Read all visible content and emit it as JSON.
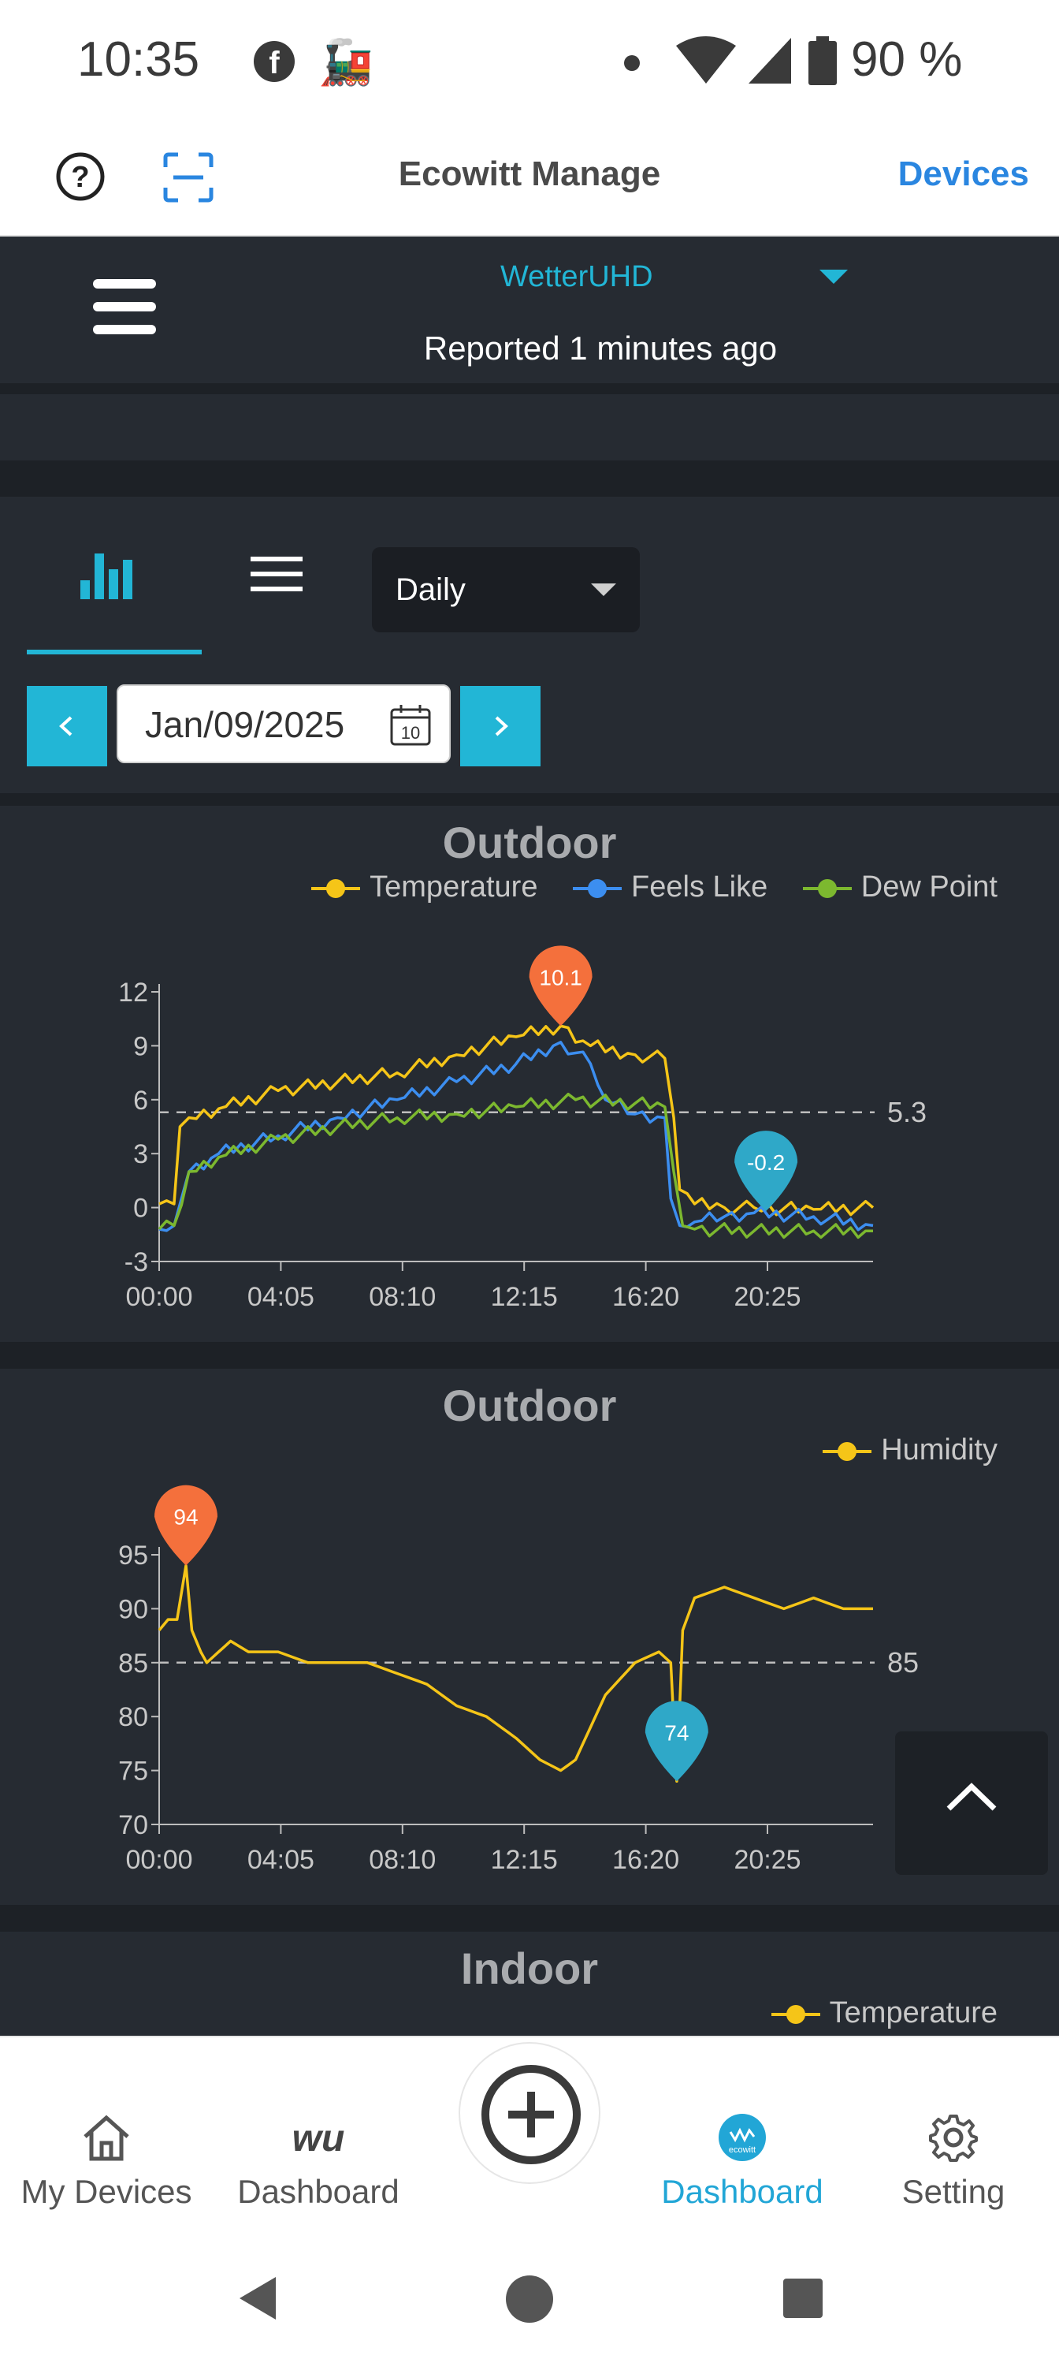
{
  "status_bar": {
    "time": "10:35",
    "battery": "90 %"
  },
  "app_header": {
    "title": "Ecowitt Manage",
    "devices_link": "Devices"
  },
  "station": {
    "name": "WetterUHD",
    "reported": "Reported 1 minutes ago"
  },
  "controls": {
    "period": "Daily",
    "date": "Jan/09/2025",
    "calendar_day": "10"
  },
  "chart1": {
    "title": "Outdoor",
    "legend": [
      "Temperature",
      "Feels Like",
      "Dew Point"
    ],
    "avg_label": "5.3",
    "max_label": "10.1",
    "min_label": "-0.2"
  },
  "chart2": {
    "title": "Outdoor",
    "legend": [
      "Humidity"
    ],
    "avg_label": "85",
    "max_label": "94",
    "min_label": "74"
  },
  "chart3": {
    "title": "Indoor",
    "legend": [
      "Temperature"
    ]
  },
  "bottom_nav": {
    "my_devices": "My Devices",
    "dashboard_wu": "Dashboard",
    "dashboard_ecowitt": "Dashboard",
    "setting": "Setting",
    "wu_logo": "wu",
    "ecowitt_logo": "ecowitt"
  },
  "colors": {
    "accent": "#22b6d6",
    "temperature": "#f5c518",
    "feels_like": "#3c8ef0",
    "dew_point": "#7cb82f",
    "max_pin": "#f4703c",
    "min_pin": "#2fa8c8"
  },
  "chart_data": [
    {
      "type": "line",
      "title": "Outdoor",
      "x_ticks": [
        "00:00",
        "04:05",
        "08:10",
        "12:15",
        "16:20",
        "20:25"
      ],
      "y_ticks": [
        12,
        9,
        6,
        3,
        0,
        -3
      ],
      "ylim": [
        -3,
        12
      ],
      "xlim_hours": [
        0,
        24
      ],
      "grid": false,
      "legend_position": "top-right",
      "average": 5.3,
      "max": 10.1,
      "min": -0.2,
      "series": [
        {
          "name": "Temperature",
          "color": "#f5c518",
          "x": [
            0,
            0.5,
            0.7,
            1,
            2,
            4,
            6,
            8,
            10,
            12,
            13.5,
            14.5,
            16,
            17,
            17.3,
            17.5,
            18,
            19,
            20,
            22,
            24
          ],
          "y": [
            0.2,
            0.2,
            4.5,
            5.0,
            5.5,
            6.5,
            7.0,
            7.5,
            8.5,
            9.5,
            10.1,
            9.0,
            8.5,
            8.3,
            5.0,
            1.0,
            0.2,
            0.0,
            0.0,
            -0.1,
            0.0
          ]
        },
        {
          "name": "Feels Like",
          "color": "#3c8ef0",
          "x": [
            0,
            0.5,
            1,
            2,
            4,
            6,
            8,
            10,
            12,
            13.5,
            14.5,
            15,
            16,
            17,
            17.2,
            17.5,
            18,
            19,
            20,
            22,
            24
          ],
          "y": [
            -1.2,
            -1.0,
            2.0,
            3.0,
            4.0,
            5.0,
            6.0,
            7.0,
            8.0,
            9.2,
            8.0,
            6.0,
            5.2,
            5.0,
            0.5,
            -1.0,
            -0.8,
            -0.5,
            -0.3,
            -0.5,
            -1.0
          ]
        },
        {
          "name": "Dew Point",
          "color": "#7cb82f",
          "x": [
            0,
            0.5,
            1,
            2,
            4,
            6,
            8,
            10,
            12,
            14,
            16,
            17,
            17.3,
            17.6,
            18,
            20,
            22,
            24
          ],
          "y": [
            -1.2,
            -1.0,
            2.0,
            2.8,
            3.8,
            4.5,
            5.0,
            5.2,
            5.6,
            6.0,
            5.8,
            5.6,
            2.0,
            -1.0,
            -1.2,
            -1.3,
            -1.3,
            -1.3
          ]
        }
      ]
    },
    {
      "type": "line",
      "title": "Outdoor",
      "x_ticks": [
        "00:00",
        "04:05",
        "08:10",
        "12:15",
        "16:20",
        "20:25"
      ],
      "y_ticks": [
        95,
        90,
        85,
        80,
        75,
        70
      ],
      "ylim": [
        70,
        95
      ],
      "xlim_hours": [
        0,
        24
      ],
      "grid": false,
      "legend_position": "top-right",
      "average": 85,
      "max": 94,
      "min": 74,
      "series": [
        {
          "name": "Humidity",
          "color": "#f5c518",
          "x": [
            0,
            0.3,
            0.6,
            0.9,
            1.1,
            1.4,
            1.6,
            2,
            2.4,
            3,
            4,
            5,
            6,
            7,
            8,
            9,
            10,
            11,
            12,
            12.8,
            13.5,
            14,
            15,
            16,
            16.8,
            17.2,
            17.4,
            17.6,
            18,
            19,
            20,
            21,
            22,
            23,
            24
          ],
          "y": [
            88,
            89,
            89,
            94,
            88,
            86,
            85,
            86,
            87,
            86,
            86,
            85,
            85,
            85,
            84,
            83,
            81,
            80,
            78,
            76,
            75,
            76,
            82,
            85,
            86,
            85,
            74,
            88,
            91,
            92,
            91,
            90,
            91,
            90,
            90
          ]
        }
      ]
    }
  ]
}
